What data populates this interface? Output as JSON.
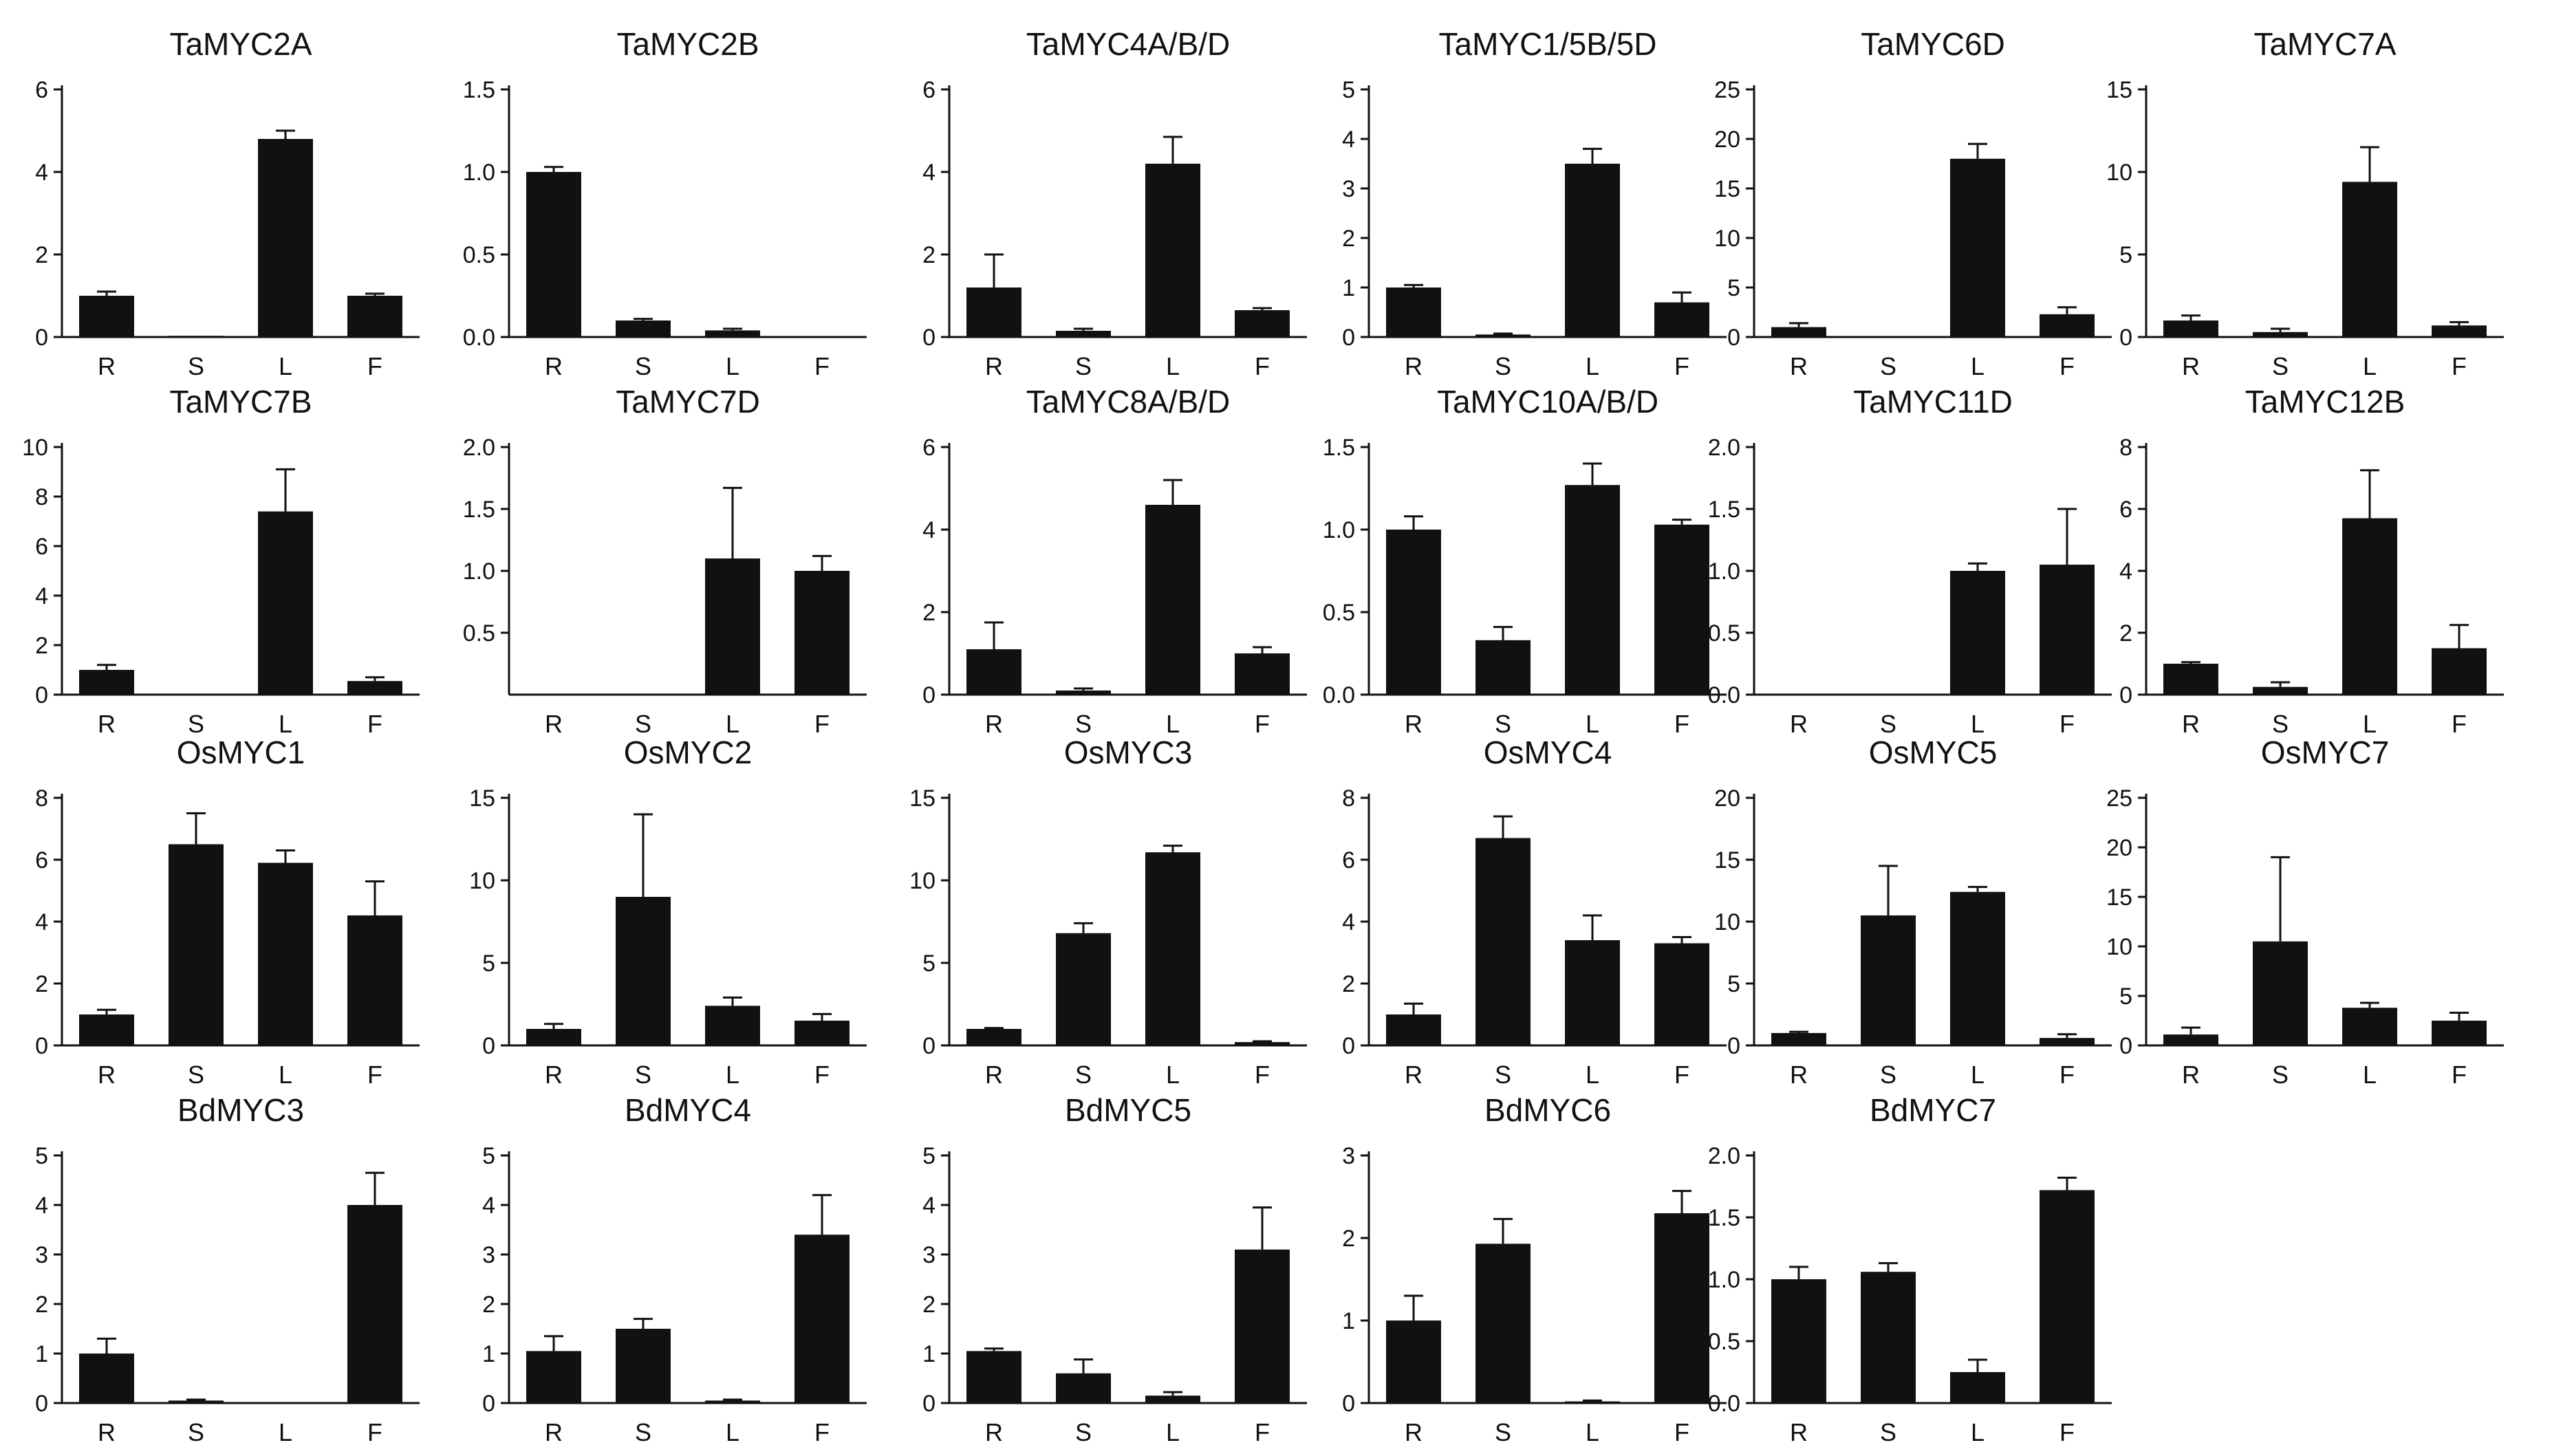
{
  "figure": {
    "bar_color": "#111111",
    "axis_color": "#111111",
    "background": "#ffffff"
  },
  "chart_data": [
    {
      "type": "bar",
      "title": "TaMYC2A",
      "categories": [
        "R",
        "S",
        "L",
        "F"
      ],
      "values": [
        1.0,
        0.03,
        4.8,
        1.0
      ],
      "errors": [
        0.1,
        0,
        0.2,
        0.05
      ],
      "ylim": [
        0,
        6
      ],
      "yticks": [
        "0",
        "2",
        "4",
        "6"
      ]
    },
    {
      "type": "bar",
      "title": "TaMYC2B",
      "categories": [
        "R",
        "S",
        "L",
        "F"
      ],
      "values": [
        1.0,
        0.1,
        0.04,
        0.0
      ],
      "errors": [
        0.03,
        0.01,
        0.01,
        0
      ],
      "ylim": [
        0,
        1.5
      ],
      "yticks": [
        "0.0",
        "0.5",
        "1.0",
        "1.5"
      ]
    },
    {
      "type": "bar",
      "title": "TaMYC4A/B/D",
      "categories": [
        "R",
        "S",
        "L",
        "F"
      ],
      "values": [
        1.2,
        0.15,
        4.2,
        0.65
      ],
      "errors": [
        0.8,
        0.05,
        0.65,
        0.05
      ],
      "ylim": [
        0,
        6
      ],
      "yticks": [
        "0",
        "2",
        "4",
        "6"
      ]
    },
    {
      "type": "bar",
      "title": "TaMYC1/5B/5D",
      "categories": [
        "R",
        "S",
        "L",
        "F"
      ],
      "values": [
        1.0,
        0.05,
        3.5,
        0.7
      ],
      "errors": [
        0.05,
        0.02,
        0.3,
        0.2
      ],
      "ylim": [
        0,
        5
      ],
      "yticks": [
        "0",
        "1",
        "2",
        "3",
        "4",
        "5"
      ]
    },
    {
      "type": "bar",
      "title": "TaMYC6D",
      "categories": [
        "R",
        "S",
        "L",
        "F"
      ],
      "values": [
        1.0,
        0.0,
        18.0,
        2.3
      ],
      "errors": [
        0.4,
        0,
        1.5,
        0.7
      ],
      "ylim": [
        0,
        25
      ],
      "yticks": [
        "0",
        "5",
        "10",
        "15",
        "20",
        "25"
      ]
    },
    {
      "type": "bar",
      "title": "TaMYC7A",
      "categories": [
        "R",
        "S",
        "L",
        "F"
      ],
      "values": [
        1.0,
        0.3,
        9.4,
        0.7
      ],
      "errors": [
        0.3,
        0.2,
        2.1,
        0.2
      ],
      "ylim": [
        0,
        15
      ],
      "yticks": [
        "0",
        "5",
        "10",
        "15"
      ]
    },
    {
      "type": "bar",
      "title": "TaMYC7B",
      "categories": [
        "R",
        "S",
        "L",
        "F"
      ],
      "values": [
        1.0,
        0.0,
        7.4,
        0.55
      ],
      "errors": [
        0.2,
        0,
        1.7,
        0.15
      ],
      "ylim": [
        0,
        10
      ],
      "yticks": [
        "0",
        "2",
        "4",
        "6",
        "8",
        "10"
      ]
    },
    {
      "type": "bar",
      "title": "TaMYC7D",
      "categories": [
        "R",
        "S",
        "L",
        "F"
      ],
      "values": [
        0.0,
        0.0,
        1.1,
        1.0
      ],
      "errors": [
        0,
        0,
        0.57,
        0.12
      ],
      "ylim": [
        0,
        2.0
      ],
      "yticks": [
        "0.5",
        "1.0",
        "1.5",
        "2.0"
      ]
    },
    {
      "type": "bar",
      "title": "TaMYC8A/B/D",
      "categories": [
        "R",
        "S",
        "L",
        "F"
      ],
      "values": [
        1.1,
        0.1,
        4.6,
        1.0
      ],
      "errors": [
        0.65,
        0.05,
        0.6,
        0.15
      ],
      "ylim": [
        0,
        6
      ],
      "yticks": [
        "0",
        "2",
        "4",
        "6"
      ]
    },
    {
      "type": "bar",
      "title": "TaMYC10A/B/D",
      "categories": [
        "R",
        "S",
        "L",
        "F"
      ],
      "values": [
        1.0,
        0.33,
        1.27,
        1.03
      ],
      "errors": [
        0.08,
        0.08,
        0.13,
        0.03
      ],
      "ylim": [
        0,
        1.5
      ],
      "yticks": [
        "0.0",
        "0.5",
        "1.0",
        "1.5"
      ]
    },
    {
      "type": "bar",
      "title": "TaMYC11D",
      "categories": [
        "R",
        "S",
        "L",
        "F"
      ],
      "values": [
        0.0,
        0.0,
        1.0,
        1.05
      ],
      "errors": [
        0,
        0,
        0.06,
        0.45
      ],
      "ylim": [
        0,
        2.0
      ],
      "yticks": [
        "0.0",
        "0.5",
        "1.0",
        "1.5",
        "2.0"
      ]
    },
    {
      "type": "bar",
      "title": "TaMYC12B",
      "categories": [
        "R",
        "S",
        "L",
        "F"
      ],
      "values": [
        1.0,
        0.25,
        5.7,
        1.5
      ],
      "errors": [
        0.05,
        0.15,
        1.55,
        0.75
      ],
      "ylim": [
        0,
        8
      ],
      "yticks": [
        "0",
        "2",
        "4",
        "6",
        "8"
      ]
    },
    {
      "type": "bar",
      "title": "OsMYC1",
      "categories": [
        "R",
        "S",
        "L",
        "F"
      ],
      "values": [
        1.0,
        6.5,
        5.9,
        4.2
      ],
      "errors": [
        0.15,
        1.0,
        0.4,
        1.1
      ],
      "ylim": [
        0,
        8
      ],
      "yticks": [
        "0",
        "2",
        "4",
        "6",
        "8"
      ]
    },
    {
      "type": "bar",
      "title": "OsMYC2",
      "categories": [
        "R",
        "S",
        "L",
        "F"
      ],
      "values": [
        1.0,
        9.0,
        2.4,
        1.5
      ],
      "errors": [
        0.3,
        5.0,
        0.5,
        0.4
      ],
      "ylim": [
        0,
        15
      ],
      "yticks": [
        "0",
        "5",
        "10",
        "15"
      ]
    },
    {
      "type": "bar",
      "title": "OsMYC3",
      "categories": [
        "R",
        "S",
        "L",
        "F"
      ],
      "values": [
        1.0,
        6.8,
        11.7,
        0.2
      ],
      "errors": [
        0.05,
        0.6,
        0.4,
        0.05
      ],
      "ylim": [
        0,
        15
      ],
      "yticks": [
        "0",
        "5",
        "10",
        "15"
      ]
    },
    {
      "type": "bar",
      "title": "OsMYC4",
      "categories": [
        "R",
        "S",
        "L",
        "F"
      ],
      "values": [
        1.0,
        6.7,
        3.4,
        3.3
      ],
      "errors": [
        0.35,
        0.7,
        0.8,
        0.2
      ],
      "ylim": [
        0,
        8
      ],
      "yticks": [
        "0",
        "2",
        "4",
        "6",
        "8"
      ]
    },
    {
      "type": "bar",
      "title": "OsMYC5",
      "categories": [
        "R",
        "S",
        "L",
        "F"
      ],
      "values": [
        1.0,
        10.5,
        12.4,
        0.6
      ],
      "errors": [
        0.1,
        4.0,
        0.4,
        0.3
      ],
      "ylim": [
        0,
        20
      ],
      "yticks": [
        "0",
        "5",
        "10",
        "15",
        "20"
      ]
    },
    {
      "type": "bar",
      "title": "OsMYC7",
      "categories": [
        "R",
        "S",
        "L",
        "F"
      ],
      "values": [
        1.1,
        10.5,
        3.8,
        2.5
      ],
      "errors": [
        0.7,
        8.5,
        0.5,
        0.8
      ],
      "ylim": [
        0,
        25
      ],
      "yticks": [
        "0",
        "5",
        "10",
        "15",
        "20",
        "25"
      ]
    },
    {
      "type": "bar",
      "title": "BdMYC3",
      "categories": [
        "R",
        "S",
        "L",
        "F"
      ],
      "values": [
        1.0,
        0.05,
        0.0,
        4.0
      ],
      "errors": [
        0.3,
        0.02,
        0,
        0.65
      ],
      "ylim": [
        0,
        5
      ],
      "yticks": [
        "0",
        "1",
        "2",
        "3",
        "4",
        "5"
      ]
    },
    {
      "type": "bar",
      "title": "BdMYC4",
      "categories": [
        "R",
        "S",
        "L",
        "F"
      ],
      "values": [
        1.05,
        1.5,
        0.05,
        3.4
      ],
      "errors": [
        0.3,
        0.2,
        0.02,
        0.8
      ],
      "ylim": [
        0,
        5
      ],
      "yticks": [
        "0",
        "1",
        "2",
        "3",
        "4",
        "5"
      ]
    },
    {
      "type": "bar",
      "title": "BdMYC5",
      "categories": [
        "R",
        "S",
        "L",
        "F"
      ],
      "values": [
        1.05,
        0.6,
        0.15,
        3.1
      ],
      "errors": [
        0.05,
        0.28,
        0.07,
        0.85
      ],
      "ylim": [
        0,
        5
      ],
      "yticks": [
        "0",
        "1",
        "2",
        "3",
        "4",
        "5"
      ]
    },
    {
      "type": "bar",
      "title": "BdMYC6",
      "categories": [
        "R",
        "S",
        "L",
        "F"
      ],
      "values": [
        1.0,
        1.93,
        0.02,
        2.3
      ],
      "errors": [
        0.3,
        0.3,
        0.01,
        0.27
      ],
      "ylim": [
        0,
        3
      ],
      "yticks": [
        "0",
        "1",
        "2",
        "3"
      ]
    },
    {
      "type": "bar",
      "title": "BdMYC7",
      "categories": [
        "R",
        "S",
        "L",
        "F"
      ],
      "values": [
        1.0,
        1.06,
        0.25,
        1.72
      ],
      "errors": [
        0.1,
        0.07,
        0.1,
        0.1
      ],
      "ylim": [
        0,
        2.0
      ],
      "yticks": [
        "0.0",
        "0.5",
        "1.0",
        "1.5",
        "2.0"
      ]
    }
  ]
}
